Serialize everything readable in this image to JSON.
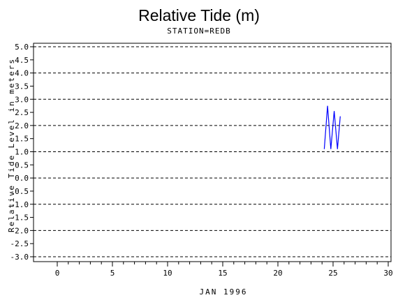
{
  "chart_data": {
    "type": "line",
    "title": "Relative Tide (m)",
    "subtitle": "STATION=REDB",
    "xlabel": "JAN 1996",
    "ylabel": "Relative Tide Level in meters",
    "xlim": [
      0,
      30
    ],
    "ylim": [
      -3.0,
      5.0
    ],
    "x_ticks": [
      0,
      5,
      10,
      15,
      20,
      25,
      30
    ],
    "y_ticks": [
      5.0,
      4.5,
      4.0,
      3.5,
      3.0,
      2.5,
      2.0,
      1.5,
      1.0,
      0.5,
      0.0,
      -0.5,
      -1.0,
      -1.5,
      -2.0,
      -2.5,
      -3.0
    ],
    "y_tick_labels": [
      "5.0",
      "4.5",
      "4.0",
      "3.5",
      "3.0",
      "2.5",
      "2.0",
      "1.5",
      "1.0",
      "0.5",
      "0.0",
      "-0.5",
      "-1.0",
      "-1.5",
      "-2.0",
      "-2.5",
      "-3.0"
    ],
    "gridlines_y": [
      5.0,
      4.0,
      3.0,
      2.0,
      1.0,
      0.0,
      -1.0,
      -2.0,
      -3.0
    ],
    "grid_style": "dashed horizontal",
    "series_color": "#0000ff",
    "series": [
      {
        "x": [
          24.2,
          24.5,
          24.8,
          25.1,
          25.4,
          25.65
        ],
        "y": [
          1.1,
          2.75,
          1.1,
          2.55,
          1.1,
          2.35
        ]
      }
    ]
  }
}
